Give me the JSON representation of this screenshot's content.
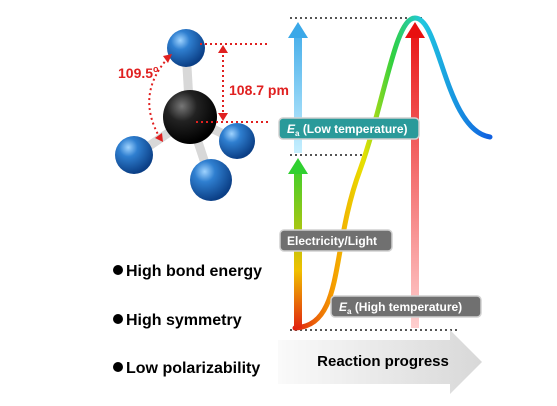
{
  "molecule": {
    "angle": {
      "value": "109.5",
      "superscript": "o"
    },
    "bond_length": "108.7 pm"
  },
  "energy_diagram": {
    "labels": [
      {
        "symbol": "E",
        "subscript": "a",
        "text": "(Low temperature)"
      },
      {
        "text": "Electricity/Light"
      },
      {
        "symbol": "E",
        "subscript": "a",
        "text": "(High temperature)"
      }
    ],
    "x_axis": "Reaction progress"
  },
  "properties": [
    "High bond energy",
    "High symmetry",
    "Low polarizability"
  ]
}
